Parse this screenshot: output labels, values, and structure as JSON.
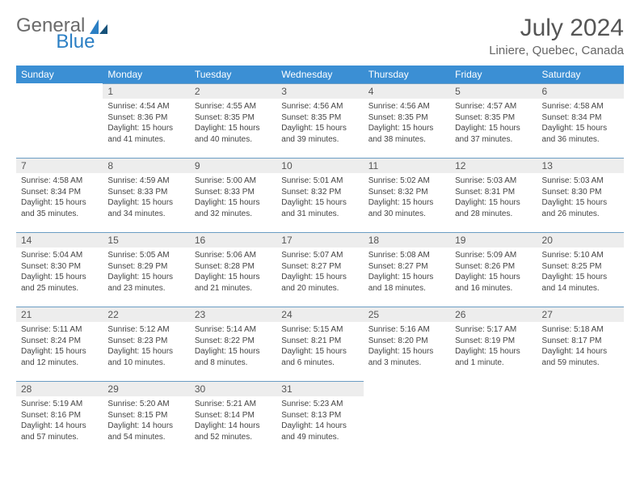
{
  "brand": {
    "general": "General",
    "blue": "Blue"
  },
  "title_month": "July 2024",
  "location": "Liniere, Quebec, Canada",
  "weekdays": [
    "Sunday",
    "Monday",
    "Tuesday",
    "Wednesday",
    "Thursday",
    "Friday",
    "Saturday"
  ],
  "colors": {
    "header_bg": "#3b8fd4",
    "header_text": "#ffffff",
    "daynum_bg": "#ededed",
    "daynum_border": "#6b9dc4",
    "title_color": "#555555",
    "text_color": "#444444",
    "logo_gray": "#6b6b6b",
    "logo_blue": "#2b7fc4"
  },
  "layout": {
    "columns": 7,
    "rows": 5,
    "first_day_col": 1
  },
  "days": [
    {
      "n": "1",
      "sunrise": "4:54 AM",
      "sunset": "8:36 PM",
      "daylight": "15 hours and 41 minutes."
    },
    {
      "n": "2",
      "sunrise": "4:55 AM",
      "sunset": "8:35 PM",
      "daylight": "15 hours and 40 minutes."
    },
    {
      "n": "3",
      "sunrise": "4:56 AM",
      "sunset": "8:35 PM",
      "daylight": "15 hours and 39 minutes."
    },
    {
      "n": "4",
      "sunrise": "4:56 AM",
      "sunset": "8:35 PM",
      "daylight": "15 hours and 38 minutes."
    },
    {
      "n": "5",
      "sunrise": "4:57 AM",
      "sunset": "8:35 PM",
      "daylight": "15 hours and 37 minutes."
    },
    {
      "n": "6",
      "sunrise": "4:58 AM",
      "sunset": "8:34 PM",
      "daylight": "15 hours and 36 minutes."
    },
    {
      "n": "7",
      "sunrise": "4:58 AM",
      "sunset": "8:34 PM",
      "daylight": "15 hours and 35 minutes."
    },
    {
      "n": "8",
      "sunrise": "4:59 AM",
      "sunset": "8:33 PM",
      "daylight": "15 hours and 34 minutes."
    },
    {
      "n": "9",
      "sunrise": "5:00 AM",
      "sunset": "8:33 PM",
      "daylight": "15 hours and 32 minutes."
    },
    {
      "n": "10",
      "sunrise": "5:01 AM",
      "sunset": "8:32 PM",
      "daylight": "15 hours and 31 minutes."
    },
    {
      "n": "11",
      "sunrise": "5:02 AM",
      "sunset": "8:32 PM",
      "daylight": "15 hours and 30 minutes."
    },
    {
      "n": "12",
      "sunrise": "5:03 AM",
      "sunset": "8:31 PM",
      "daylight": "15 hours and 28 minutes."
    },
    {
      "n": "13",
      "sunrise": "5:03 AM",
      "sunset": "8:30 PM",
      "daylight": "15 hours and 26 minutes."
    },
    {
      "n": "14",
      "sunrise": "5:04 AM",
      "sunset": "8:30 PM",
      "daylight": "15 hours and 25 minutes."
    },
    {
      "n": "15",
      "sunrise": "5:05 AM",
      "sunset": "8:29 PM",
      "daylight": "15 hours and 23 minutes."
    },
    {
      "n": "16",
      "sunrise": "5:06 AM",
      "sunset": "8:28 PM",
      "daylight": "15 hours and 21 minutes."
    },
    {
      "n": "17",
      "sunrise": "5:07 AM",
      "sunset": "8:27 PM",
      "daylight": "15 hours and 20 minutes."
    },
    {
      "n": "18",
      "sunrise": "5:08 AM",
      "sunset": "8:27 PM",
      "daylight": "15 hours and 18 minutes."
    },
    {
      "n": "19",
      "sunrise": "5:09 AM",
      "sunset": "8:26 PM",
      "daylight": "15 hours and 16 minutes."
    },
    {
      "n": "20",
      "sunrise": "5:10 AM",
      "sunset": "8:25 PM",
      "daylight": "15 hours and 14 minutes."
    },
    {
      "n": "21",
      "sunrise": "5:11 AM",
      "sunset": "8:24 PM",
      "daylight": "15 hours and 12 minutes."
    },
    {
      "n": "22",
      "sunrise": "5:12 AM",
      "sunset": "8:23 PM",
      "daylight": "15 hours and 10 minutes."
    },
    {
      "n": "23",
      "sunrise": "5:14 AM",
      "sunset": "8:22 PM",
      "daylight": "15 hours and 8 minutes."
    },
    {
      "n": "24",
      "sunrise": "5:15 AM",
      "sunset": "8:21 PM",
      "daylight": "15 hours and 6 minutes."
    },
    {
      "n": "25",
      "sunrise": "5:16 AM",
      "sunset": "8:20 PM",
      "daylight": "15 hours and 3 minutes."
    },
    {
      "n": "26",
      "sunrise": "5:17 AM",
      "sunset": "8:19 PM",
      "daylight": "15 hours and 1 minute."
    },
    {
      "n": "27",
      "sunrise": "5:18 AM",
      "sunset": "8:17 PM",
      "daylight": "14 hours and 59 minutes."
    },
    {
      "n": "28",
      "sunrise": "5:19 AM",
      "sunset": "8:16 PM",
      "daylight": "14 hours and 57 minutes."
    },
    {
      "n": "29",
      "sunrise": "5:20 AM",
      "sunset": "8:15 PM",
      "daylight": "14 hours and 54 minutes."
    },
    {
      "n": "30",
      "sunrise": "5:21 AM",
      "sunset": "8:14 PM",
      "daylight": "14 hours and 52 minutes."
    },
    {
      "n": "31",
      "sunrise": "5:23 AM",
      "sunset": "8:13 PM",
      "daylight": "14 hours and 49 minutes."
    }
  ],
  "labels": {
    "sunrise": "Sunrise:",
    "sunset": "Sunset:",
    "daylight": "Daylight:"
  }
}
